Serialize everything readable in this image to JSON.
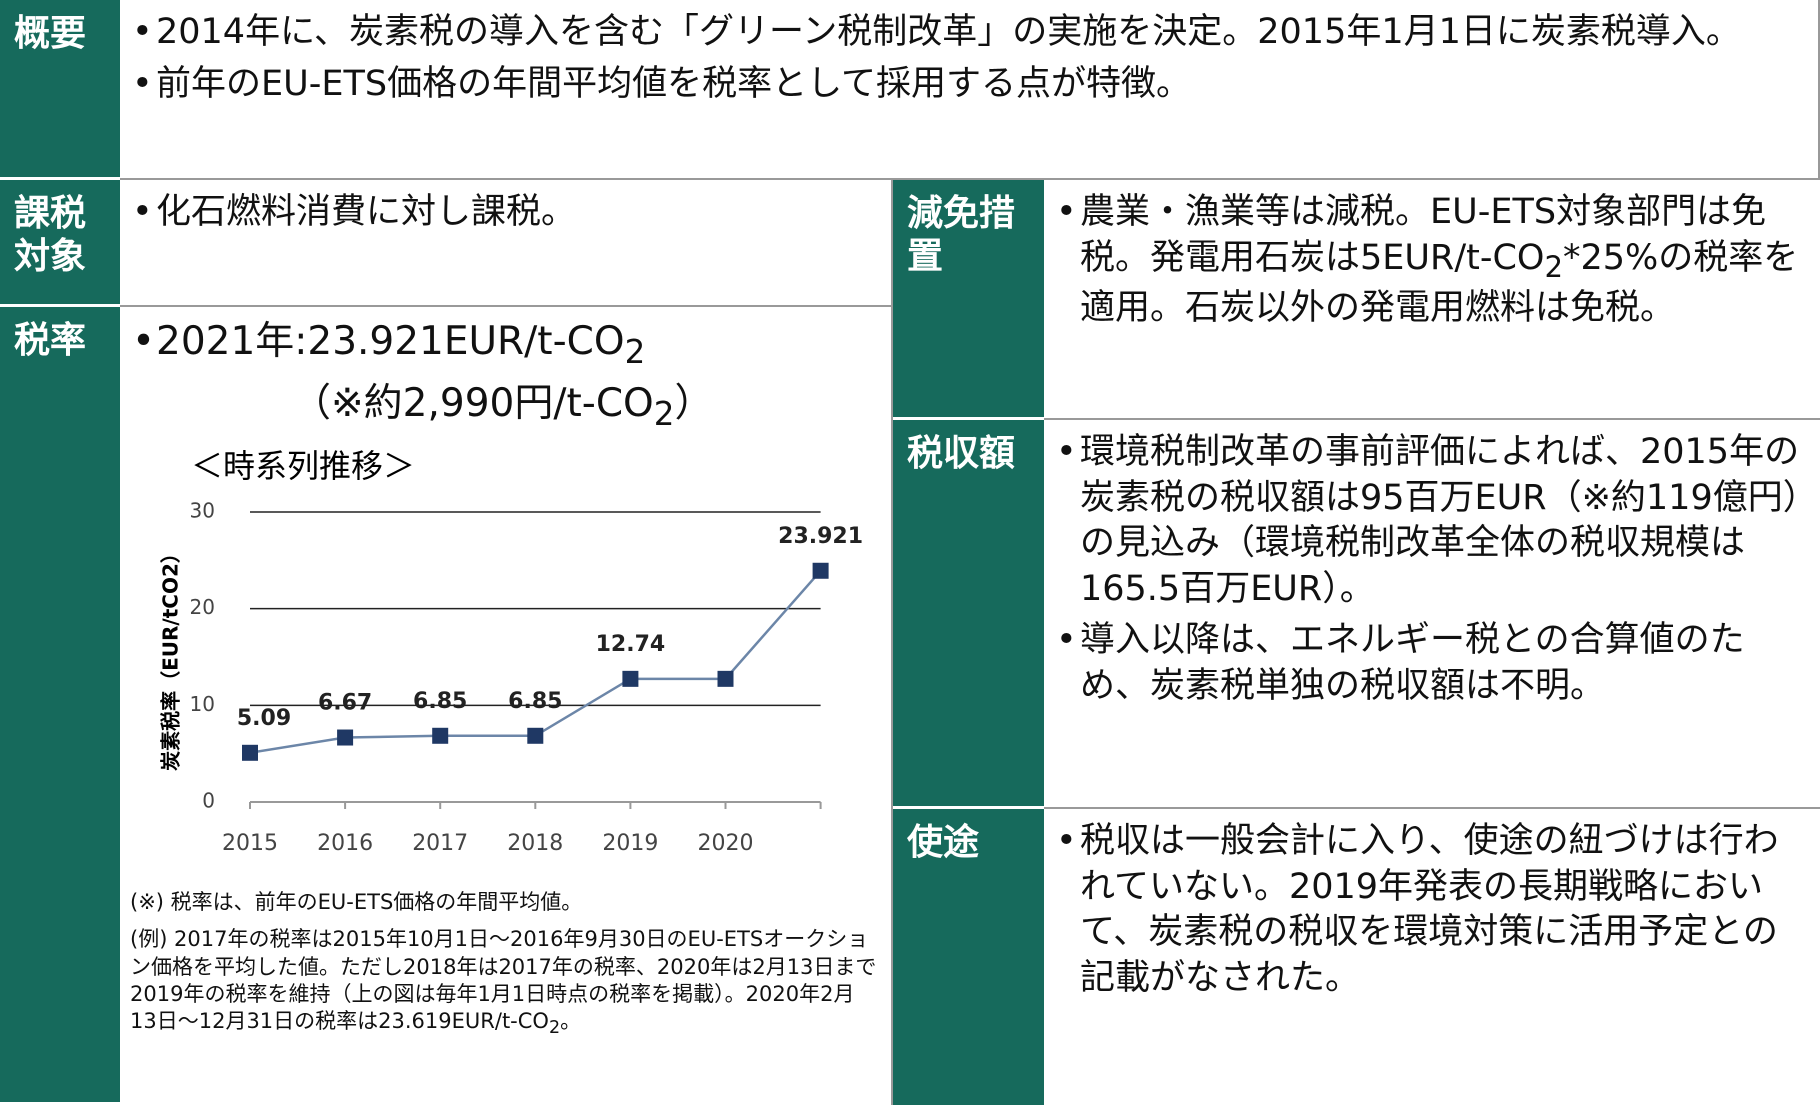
{
  "rows": {
    "overview": {
      "label": "概要",
      "bullets": [
        [
          "2014年に、炭素税の導入を含む「グリーン税制改革」の実施を決定。2015年1月1日に炭素税導入。"
        ],
        [
          "前年のEU-ETS価格の年間平均値を税率として採用する点が特徴。"
        ]
      ]
    },
    "target": {
      "label": "課税対象",
      "bullets": [
        [
          "化石燃料消費に対し課税。"
        ]
      ]
    },
    "rate": {
      "label": "税率",
      "bullets": [
        [
          "2021年:23.921EUR/t-CO",
          "2"
        ]
      ],
      "sub_line": [
        "（※約2,990円/t-CO",
        "2",
        "）"
      ],
      "notes": [
        [
          "(※) 税率は、前年のEU-ETS価格の年間平均値。"
        ],
        [
          "(例) 2017年の税率は2015年10月1日～2016年9月30日のEU-ETSオークション価格を平均した値。ただし2018年は2017年の税率、2020年は2月13日まで2019年の税率を維持（上の図は毎年1月1日時点の税率を掲載）。2020年2月13日～12月31日の税率は23.619EUR/t-CO",
          "2",
          "。"
        ]
      ]
    },
    "exemption": {
      "label": "減免措置",
      "bullets": [
        [
          "農業・漁業等は減税。EU-ETS対象部門は免税。発電用石炭は5EUR/t-CO",
          "2",
          "*25%の税率を適用。石炭以外の発電用燃料は免税。"
        ]
      ]
    },
    "revenue": {
      "label": "税収額",
      "bullets": [
        [
          "環境税制改革の事前評価によれば、2015年の炭素税の税収額は95百万EUR（※約119億円）の見込み（環境税制改革全体の税収規模は165.5百万EUR）。"
        ],
        [
          "導入以降は、エネルギー税との合算値のため、炭素税単独の税収額は不明。"
        ]
      ]
    },
    "usage": {
      "label": "使途",
      "bullets": [
        [
          "税収は一般会計に入り、使途の紐づけは行われていない。2019年発表の長期戦略において、炭素税の税収を環境対策に活用予定との記載がなされた。"
        ]
      ]
    }
  },
  "chart_data": {
    "type": "line",
    "title": "＜時系列推移＞",
    "y_label": "炭素税率（EUR/tCO2）",
    "categories": [
      "2015",
      "2016",
      "2017",
      "2018",
      "2019",
      "2020",
      null
    ],
    "values": [
      5.09,
      6.67,
      6.85,
      6.85,
      12.74,
      12.74,
      23.921
    ],
    "value_labels": [
      "5.09",
      "6.67",
      "6.85",
      "6.85",
      "12.74",
      null,
      "23.921"
    ],
    "color": "#1f3864",
    "ylim": [
      0,
      30
    ],
    "yticks": [
      0,
      10,
      20,
      30
    ],
    "grid": true
  }
}
